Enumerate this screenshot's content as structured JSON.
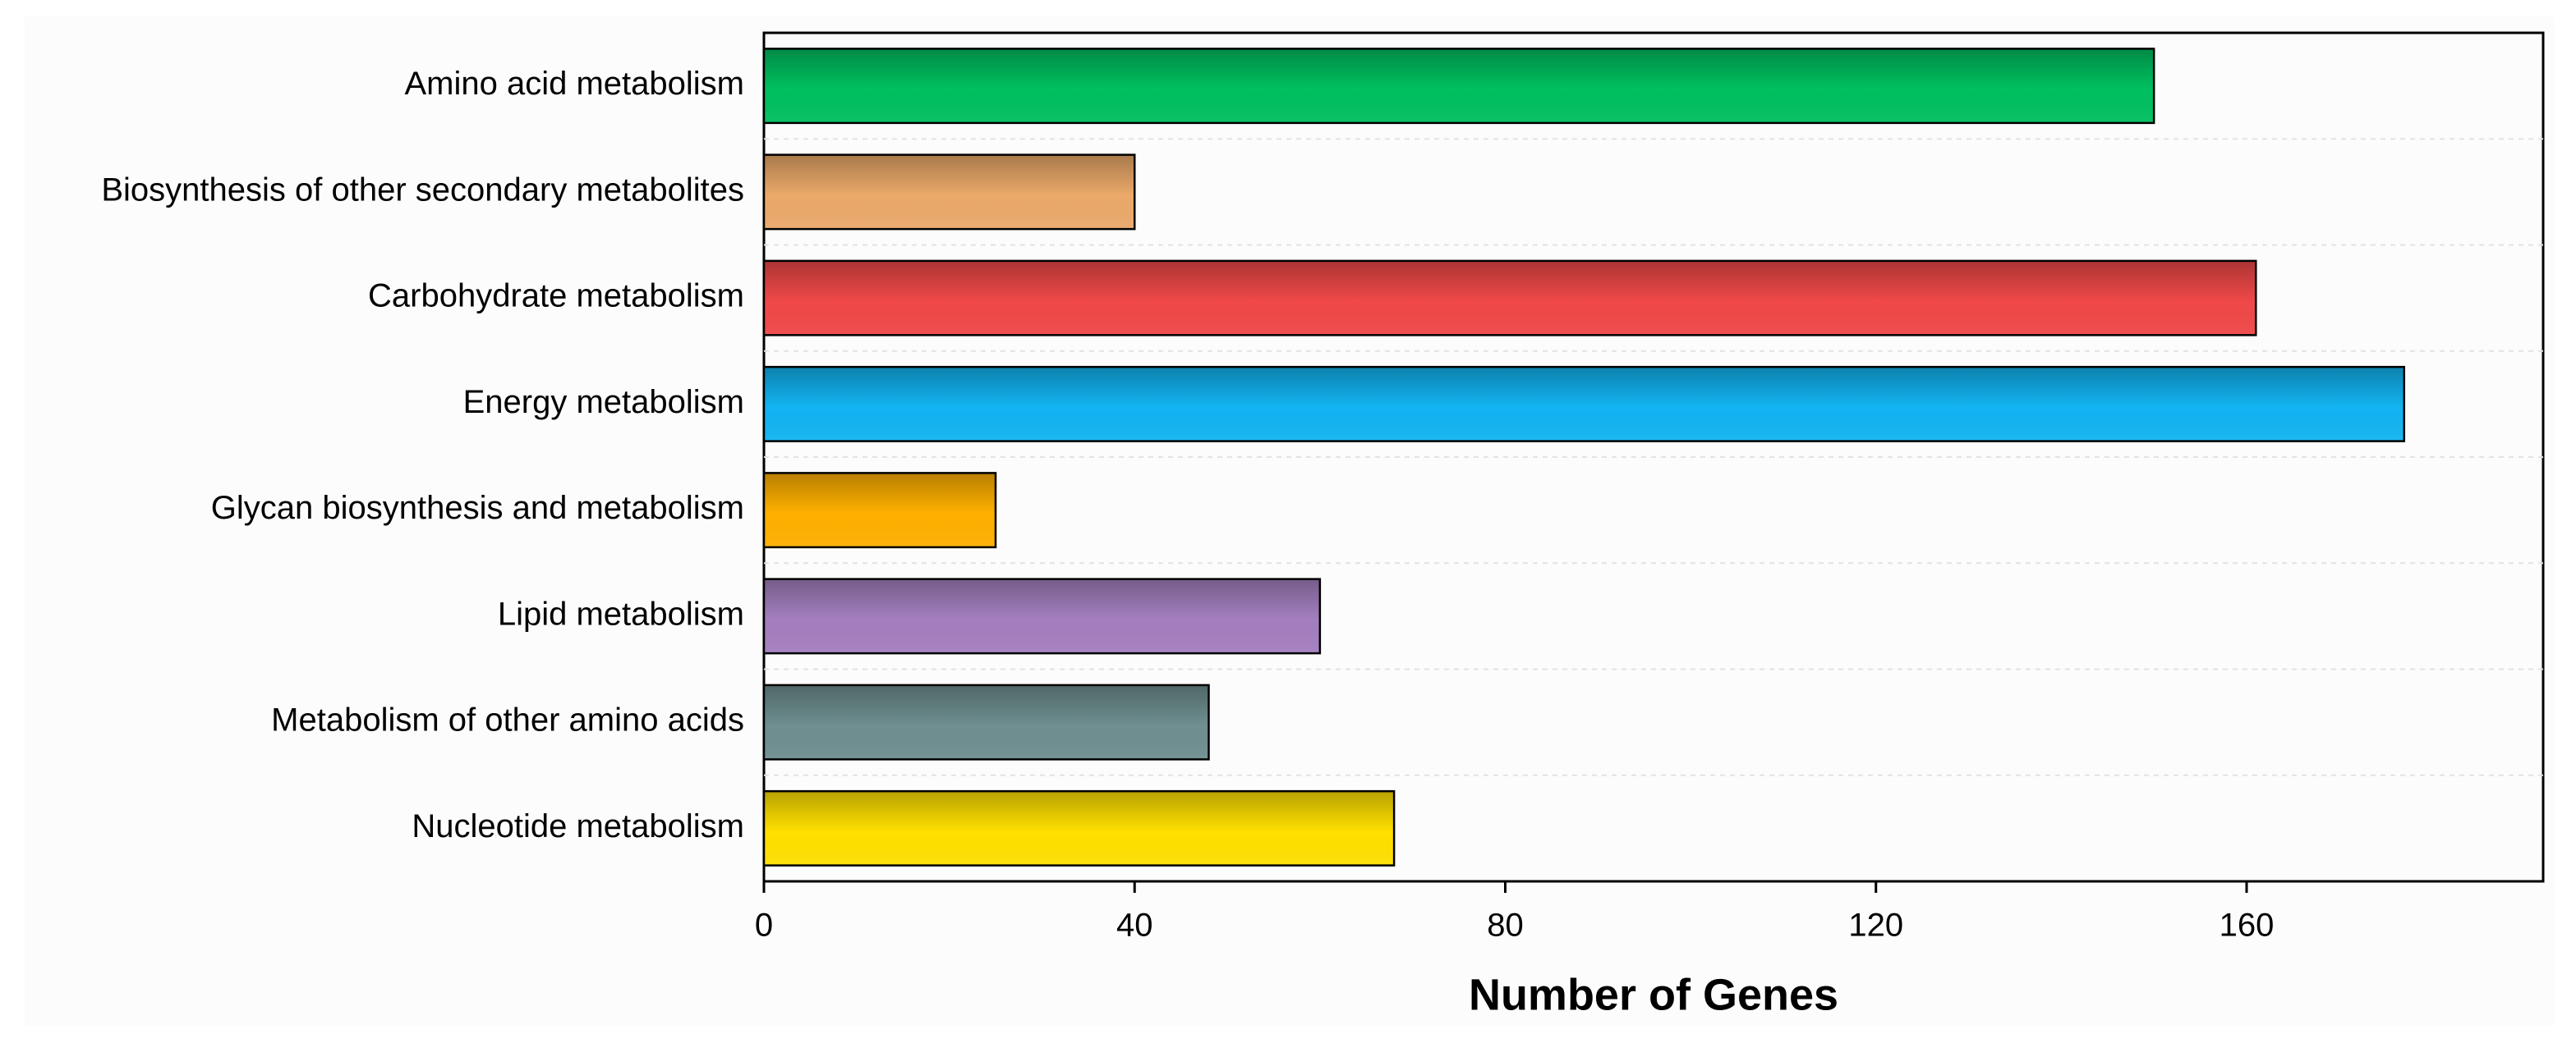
{
  "chart_data": {
    "type": "barh",
    "categories": [
      "Amino acid metabolism",
      "Biosynthesis of other secondary metabolites",
      "Carbohydrate metabolism",
      "Energy metabolism",
      "Glycan biosynthesis and metabolism",
      "Lipid metabolism",
      "Metabolism of other amino acids",
      "Nucleotide metabolism"
    ],
    "values": [
      150,
      40,
      161,
      177,
      25,
      60,
      48,
      68
    ],
    "colors": [
      "#00c060",
      "#eba96a",
      "#f04848",
      "#12b4f2",
      "#ffb000",
      "#a47fbf",
      "#6f8f90",
      "#ffe000"
    ],
    "xlabel": "Number of Genes",
    "xlim": [
      0,
      192
    ],
    "xticks": [
      0,
      40,
      80,
      120,
      160
    ]
  }
}
